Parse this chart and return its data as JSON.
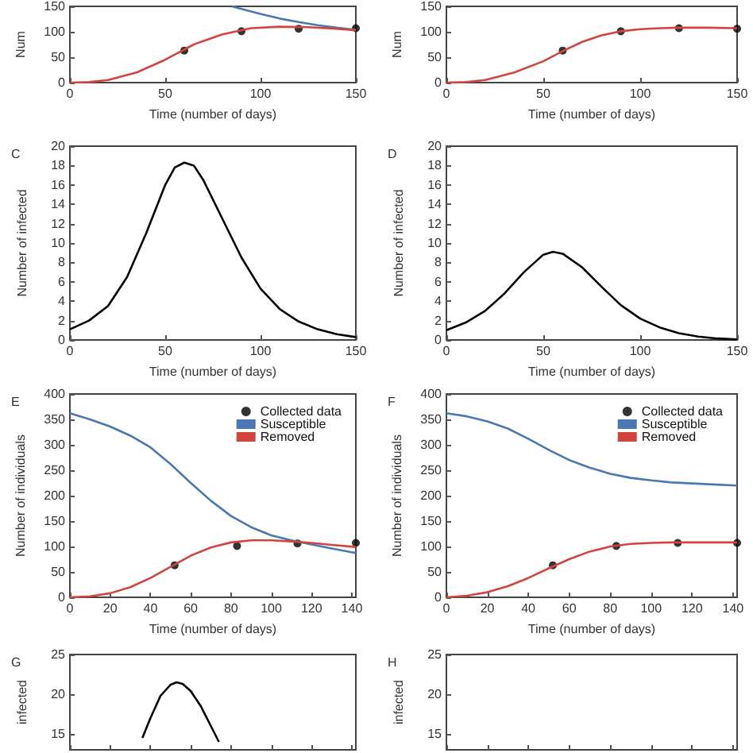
{
  "chart_data": [
    {
      "type": "line",
      "xlabel": "Time (number of days)",
      "ylabel": "Num",
      "xlim": [
        0,
        150
      ],
      "xticks": [
        0,
        50,
        100,
        150
      ],
      "ylim": [
        0,
        150
      ],
      "yticks": [
        0,
        50,
        100,
        150
      ],
      "grid": false,
      "series": [
        {
          "type": "line",
          "color": "#4a78b5",
          "x": [
            85,
            90,
            100,
            110,
            120,
            130,
            140,
            150
          ],
          "values": [
            150,
            145,
            135,
            126,
            119,
            113,
            108,
            104
          ]
        },
        {
          "type": "line",
          "color": "#d2453f",
          "x": [
            0,
            10,
            20,
            35,
            50,
            65,
            80,
            95,
            110,
            125,
            140,
            150
          ],
          "values": [
            0,
            1,
            5,
            20,
            45,
            75,
            95,
            107,
            110,
            109,
            106,
            103
          ]
        },
        {
          "type": "scatter",
          "marker": "circle",
          "color": "#000000",
          "x": [
            60,
            90,
            120,
            150
          ],
          "values": [
            63,
            101,
            106,
            107
          ]
        }
      ]
    },
    {
      "type": "line",
      "xlabel": "Time (number of days)",
      "ylabel": "Num",
      "xlim": [
        0,
        150
      ],
      "xticks": [
        0,
        50,
        100,
        150
      ],
      "ylim": [
        0,
        150
      ],
      "yticks": [
        0,
        50,
        100,
        150
      ],
      "grid": false,
      "series": [
        {
          "type": "line",
          "color": "#d2453f",
          "x": [
            0,
            10,
            20,
            35,
            50,
            60,
            70,
            80,
            90,
            100,
            110,
            120,
            135,
            150
          ],
          "values": [
            0,
            1,
            5,
            20,
            42,
            62,
            80,
            93,
            101,
            105,
            107,
            108,
            108,
            107
          ]
        },
        {
          "type": "scatter",
          "marker": "circle",
          "color": "#000000",
          "x": [
            60,
            90,
            120,
            150
          ],
          "values": [
            63,
            101,
            107,
            106
          ]
        }
      ]
    },
    {
      "type": "line",
      "title": "C",
      "xlabel": "Time (number of days)",
      "ylabel": "Number of infected",
      "xlim": [
        0,
        150
      ],
      "xticks": [
        0,
        50,
        100,
        150
      ],
      "ylim": [
        0,
        20
      ],
      "yticks": [
        0,
        2,
        4,
        6,
        8,
        10,
        12,
        14,
        16,
        18,
        20
      ],
      "grid": false,
      "series": [
        {
          "type": "line",
          "color": "#000000",
          "x": [
            0,
            10,
            20,
            30,
            40,
            50,
            55,
            60,
            65,
            70,
            80,
            90,
            100,
            110,
            120,
            130,
            140,
            150
          ],
          "values": [
            1.1,
            2,
            3.5,
            6.5,
            11,
            16,
            17.8,
            18.3,
            18,
            16.5,
            12.5,
            8.5,
            5.3,
            3.2,
            1.9,
            1.1,
            0.6,
            0.3
          ]
        }
      ]
    },
    {
      "type": "line",
      "title": "D",
      "xlabel": "Time (number of days)",
      "ylabel": "Number of infected",
      "xlim": [
        0,
        150
      ],
      "xticks": [
        0,
        50,
        100,
        150
      ],
      "ylim": [
        0,
        20
      ],
      "yticks": [
        0,
        2,
        4,
        6,
        8,
        10,
        12,
        14,
        16,
        18,
        20
      ],
      "grid": false,
      "series": [
        {
          "type": "line",
          "color": "#000000",
          "x": [
            0,
            10,
            20,
            30,
            40,
            50,
            55,
            60,
            70,
            80,
            90,
            100,
            110,
            120,
            130,
            140,
            150
          ],
          "values": [
            1,
            1.8,
            3,
            4.8,
            7,
            8.8,
            9.1,
            8.9,
            7.5,
            5.5,
            3.6,
            2.2,
            1.3,
            0.7,
            0.35,
            0.15,
            0.05
          ]
        }
      ]
    },
    {
      "type": "line",
      "title": "E",
      "xlabel": "Time (number of days)",
      "ylabel": "Number of individuals",
      "xlim": [
        0,
        142
      ],
      "xticks": [
        0,
        20,
        40,
        60,
        80,
        100,
        120,
        140
      ],
      "ylim": [
        0,
        400
      ],
      "yticks": [
        0,
        50,
        100,
        150,
        200,
        250,
        300,
        350,
        400
      ],
      "grid": false,
      "legend": "top right",
      "series": [
        {
          "name": "Collected data",
          "type": "scatter",
          "marker": "circle",
          "color": "#000000",
          "x": [
            52,
            83,
            113,
            142
          ],
          "values": [
            63,
            101,
            106,
            107
          ]
        },
        {
          "name": "Susceptible",
          "type": "line",
          "color": "#4a78b5",
          "x": [
            0,
            10,
            20,
            30,
            40,
            50,
            60,
            70,
            80,
            90,
            100,
            110,
            120,
            130,
            142
          ],
          "values": [
            362,
            350,
            336,
            318,
            295,
            262,
            225,
            190,
            160,
            138,
            122,
            112,
            104,
            96,
            87
          ]
        },
        {
          "name": "Removed",
          "type": "line",
          "color": "#d2453f",
          "x": [
            0,
            10,
            20,
            30,
            40,
            50,
            60,
            70,
            80,
            90,
            100,
            110,
            120,
            130,
            142
          ],
          "values": [
            0,
            2,
            8,
            20,
            38,
            60,
            82,
            98,
            108,
            112,
            112,
            110,
            107,
            103,
            99
          ]
        }
      ]
    },
    {
      "type": "line",
      "title": "F",
      "xlabel": "Time (number of days)",
      "ylabel": "Number of individuals",
      "xlim": [
        0,
        142
      ],
      "xticks": [
        0,
        20,
        40,
        60,
        80,
        100,
        120,
        140
      ],
      "ylim": [
        0,
        400
      ],
      "yticks": [
        0,
        50,
        100,
        150,
        200,
        250,
        300,
        350,
        400
      ],
      "grid": false,
      "legend": "top right",
      "series": [
        {
          "name": "Collected data",
          "type": "scatter",
          "marker": "circle",
          "color": "#000000",
          "x": [
            52,
            83,
            113,
            142
          ],
          "values": [
            63,
            101,
            107,
            107
          ]
        },
        {
          "name": "Susceptible",
          "type": "line",
          "color": "#4a78b5",
          "x": [
            0,
            10,
            20,
            30,
            40,
            50,
            60,
            70,
            80,
            90,
            100,
            110,
            120,
            130,
            142
          ],
          "values": [
            362,
            356,
            346,
            332,
            312,
            290,
            270,
            255,
            243,
            235,
            230,
            226,
            224,
            222,
            220
          ]
        },
        {
          "name": "Removed",
          "type": "line",
          "color": "#d2453f",
          "x": [
            0,
            10,
            20,
            30,
            40,
            50,
            60,
            70,
            80,
            90,
            100,
            110,
            120,
            130,
            142
          ],
          "values": [
            0,
            3,
            10,
            22,
            38,
            57,
            75,
            90,
            100,
            105,
            107,
            108,
            108,
            108,
            108
          ]
        }
      ]
    },
    {
      "type": "line",
      "title": "G",
      "ylabel": "infected",
      "xlim": [
        0,
        142
      ],
      "xticks": [
        0,
        20,
        40,
        60,
        80,
        100,
        120,
        140
      ],
      "ylim": [
        13,
        25
      ],
      "yticks": [
        15,
        20,
        25
      ],
      "grid": false,
      "tick_labels": "y",
      "series": [
        {
          "type": "line",
          "color": "#000000",
          "x": [
            36,
            40,
            45,
            50,
            53,
            56,
            60,
            65,
            70,
            74
          ],
          "values": [
            14.5,
            17,
            19.8,
            21.2,
            21.5,
            21.3,
            20.4,
            18.5,
            16,
            14
          ]
        }
      ]
    },
    {
      "type": "line",
      "title": "H",
      "ylabel": "infected",
      "xlim": [
        0,
        142
      ],
      "xticks": [
        0,
        20,
        40,
        60,
        80,
        100,
        120,
        140
      ],
      "ylim": [
        13,
        25
      ],
      "yticks": [
        15,
        20,
        25
      ],
      "grid": false,
      "tick_labels": "y"
    }
  ]
}
